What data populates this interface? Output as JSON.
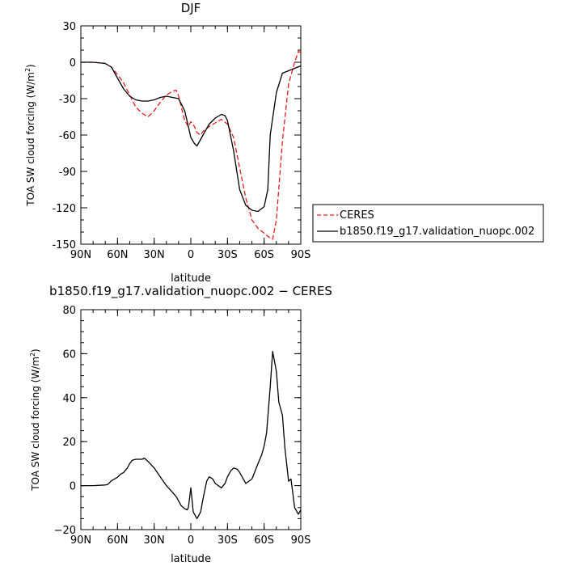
{
  "chart_data": [
    {
      "type": "line",
      "title": "DJF",
      "xlabel": "latitude",
      "ylabel": "TOA SW cloud forcing (W/m²)",
      "ylabel_main": "TOA SW cloud forcing (W/m",
      "ylabel_sup": "2",
      "ylabel_close": ")",
      "xlim": [
        90,
        -90
      ],
      "ylim": [
        -150,
        30
      ],
      "xticks": [
        90,
        60,
        30,
        0,
        -30,
        -60,
        -90
      ],
      "xtick_labels": [
        "90N",
        "60N",
        "30N",
        "0",
        "30S",
        "60S",
        "90S"
      ],
      "yticks": [
        -150,
        -120,
        -90,
        -60,
        -30,
        0,
        30
      ],
      "ytick_labels": [
        "-150",
        "-120",
        "-90",
        "-60",
        "-30",
        "0",
        "30"
      ],
      "legend_position": "right",
      "series": [
        {
          "name": "CERES",
          "color": "#e41a1c",
          "dash": "dashed",
          "x": [
            90,
            80,
            70,
            65,
            60,
            55,
            50,
            45,
            40,
            35,
            30,
            25,
            20,
            15,
            12,
            10,
            5,
            2,
            0,
            -3,
            -5,
            -8,
            -10,
            -15,
            -20,
            -25,
            -30,
            -35,
            -40,
            -45,
            -50,
            -55,
            -60,
            -65,
            -67,
            -70,
            -75,
            -80,
            -85,
            -88,
            -90
          ],
          "y": [
            0,
            0,
            -1,
            -4,
            -10,
            -17,
            -27,
            -37,
            -42,
            -45,
            -40,
            -33,
            -27,
            -24,
            -23,
            -28,
            -48,
            -53,
            -49,
            -53,
            -58,
            -60,
            -57,
            -53,
            -50,
            -47,
            -51,
            -62,
            -87,
            -112,
            -130,
            -137,
            -141,
            -145,
            -146,
            -130,
            -65,
            -18,
            0,
            9,
            8
          ]
        },
        {
          "name": "b1850.f19_g17.validation_nuopc.002",
          "color": "#000000",
          "dash": "solid",
          "x": [
            90,
            80,
            70,
            65,
            60,
            55,
            50,
            45,
            40,
            35,
            30,
            25,
            20,
            15,
            10,
            5,
            2,
            0,
            -3,
            -5,
            -10,
            -15,
            -20,
            -25,
            -28,
            -30,
            -35,
            -40,
            -45,
            -50,
            -55,
            -60,
            -63,
            -65,
            -70,
            -75,
            -80,
            -85,
            -90
          ],
          "y": [
            0,
            0,
            -1,
            -4,
            -13,
            -22,
            -28,
            -31,
            -32,
            -32,
            -31,
            -29,
            -28,
            -29,
            -30,
            -40,
            -53,
            -62,
            -67,
            -69,
            -60,
            -51,
            -46,
            -43,
            -44,
            -48,
            -73,
            -105,
            -118,
            -122,
            -123,
            -119,
            -105,
            -60,
            -25,
            -9,
            -7,
            -5,
            -3
          ]
        }
      ]
    },
    {
      "type": "line",
      "title": "b1850.f19_g17.validation_nuopc.002 − CERES",
      "xlabel": "latitude",
      "ylabel": "TOA SW cloud forcing (W/m²)",
      "ylabel_main": "TOA SW cloud forcing (W/m",
      "ylabel_sup": "2",
      "ylabel_close": ")",
      "xlim": [
        90,
        -90
      ],
      "ylim": [
        -20,
        80
      ],
      "xticks": [
        90,
        60,
        30,
        0,
        -30,
        -60,
        -90
      ],
      "xtick_labels": [
        "90N",
        "60N",
        "30N",
        "0",
        "30S",
        "60S",
        "90S"
      ],
      "yticks": [
        -20,
        0,
        20,
        40,
        60,
        80
      ],
      "ytick_labels": [
        "−20",
        "0",
        "20",
        "40",
        "60",
        "80"
      ],
      "series": [
        {
          "color": "#000000",
          "dash": "solid",
          "x": [
            90,
            80,
            70,
            68,
            65,
            60,
            58,
            55,
            52,
            50,
            48,
            45,
            42,
            40,
            38,
            35,
            30,
            25,
            20,
            15,
            12,
            10,
            8,
            5,
            3,
            2,
            0,
            -2,
            -5,
            -8,
            -10,
            -13,
            -15,
            -18,
            -20,
            -25,
            -28,
            -30,
            -33,
            -35,
            -38,
            -40,
            -45,
            -50,
            -55,
            -58,
            -60,
            -62,
            -63,
            -65,
            -67,
            -70,
            -72,
            -75,
            -77,
            -80,
            -82,
            -85,
            -88,
            -90
          ],
          "y": [
            0,
            0,
            0.3,
            0.5,
            2.2,
            3.8,
            5,
            6,
            8,
            10,
            11.5,
            12,
            12,
            12,
            12.5,
            11,
            8,
            4,
            0,
            -3,
            -5,
            -7,
            -9,
            -10.5,
            -11,
            -10,
            -1,
            -12,
            -15,
            -12,
            -6,
            2,
            4,
            3,
            1,
            -1,
            1,
            4,
            7,
            8,
            7.5,
            6,
            1,
            3,
            10,
            14,
            18,
            24,
            31,
            45,
            61,
            52,
            38,
            32,
            17,
            2,
            3,
            -10,
            -13,
            -11
          ]
        }
      ]
    }
  ]
}
